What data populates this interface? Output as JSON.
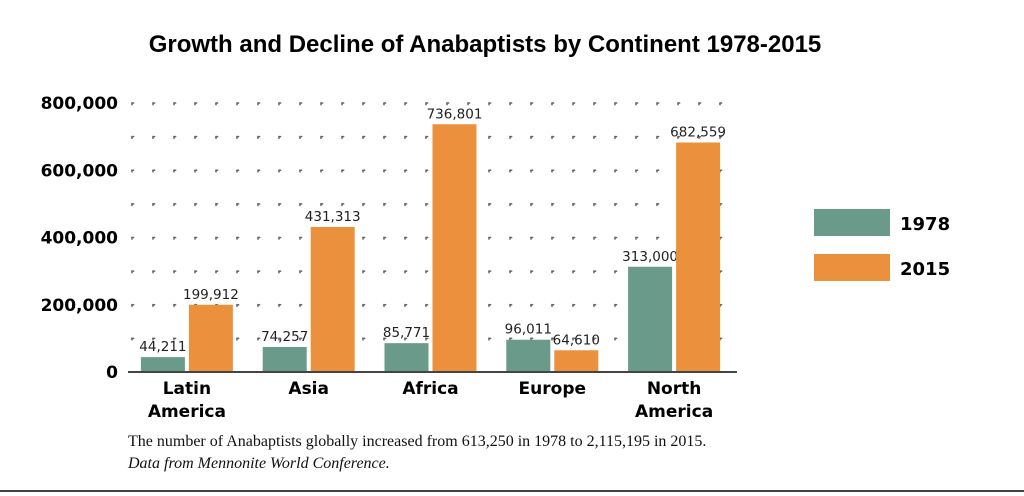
{
  "chart_data": {
    "type": "bar",
    "title": "Growth and Decline of Anabaptists by Continent 1978-2015",
    "categories": [
      [
        "Latin",
        "America"
      ],
      [
        "Asia"
      ],
      [
        "Africa"
      ],
      [
        "Europe"
      ],
      [
        "North",
        "America"
      ]
    ],
    "series": [
      {
        "name": "1978",
        "color": "#6a9a8a",
        "values": [
          44211,
          74257,
          85771,
          96011,
          313000
        ],
        "labels": [
          "44,211",
          "74,257",
          "85,771",
          "96,011",
          "313,000"
        ]
      },
      {
        "name": "2015",
        "color": "#eb913d",
        "values": [
          199912,
          431313,
          736801,
          64610,
          682559
        ],
        "labels": [
          "199,912",
          "431,313",
          "736,801",
          "64,610",
          "682,559"
        ]
      }
    ],
    "yticks": [
      0,
      200000,
      400000,
      600000,
      800000
    ],
    "ytick_labels": [
      "0",
      "200,000",
      "400,000",
      "600,000",
      "800,000"
    ],
    "ylim": [
      0,
      800000
    ],
    "xlabel": "",
    "ylabel": "",
    "grid": "dotted",
    "legend": "right"
  },
  "notes": {
    "line1": "The number of Anabaptists globally increased from 613,250 in 1978 to 2,115,195 in 2015.",
    "line2": "Data from Mennonite World Conference."
  }
}
